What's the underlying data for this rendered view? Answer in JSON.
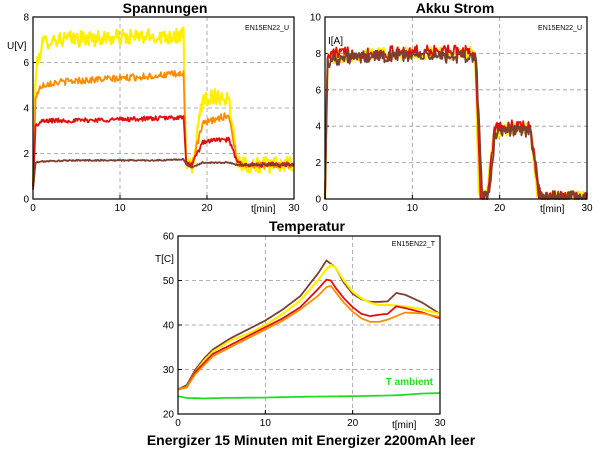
{
  "caption": "Energizer 15 Minuten mit Energizer 2200mAh leer",
  "colors": {
    "yellow": "#ffee00",
    "orange": "#ff8c00",
    "red": "#e01010",
    "brown": "#7a4034",
    "green": "#22dd22",
    "grid": "#999999"
  },
  "chart_data": [
    {
      "type": "line",
      "title": "Spannungen",
      "tag": "EN15EN22_U",
      "ylabel": "U[V]",
      "xlabel": "t[min]",
      "xlim": [
        0,
        30
      ],
      "ylim": [
        0,
        8
      ],
      "xticks": [
        "0",
        "10",
        "20",
        "30"
      ],
      "yticks": [
        "0",
        "2",
        "4",
        "6",
        "8"
      ],
      "grid": true,
      "series": [
        {
          "color": "yellow",
          "noise": 0.35,
          "x": [
            0,
            0.3,
            1,
            2,
            5,
            10,
            15,
            17.3,
            17.6,
            18.3,
            19.5,
            20.5,
            21.5,
            22.5,
            23.5,
            24.5,
            25.5,
            26.5,
            27.5,
            28.5,
            29.5,
            30
          ],
          "y": [
            0.6,
            5.5,
            6.8,
            7.0,
            7.05,
            7.1,
            7.15,
            7.2,
            1.5,
            1.4,
            4.4,
            4.5,
            4.5,
            4.4,
            1.7,
            1.5,
            1.5,
            1.5,
            1.5,
            1.5,
            1.5,
            1.5
          ]
        },
        {
          "color": "orange",
          "noise": 0.15,
          "x": [
            0,
            0.3,
            1,
            2,
            5,
            10,
            15,
            17.3,
            17.6,
            18.3,
            19.5,
            21,
            22.5,
            23.5,
            24.5,
            30
          ],
          "y": [
            0.5,
            4.5,
            5.0,
            5.1,
            5.2,
            5.3,
            5.45,
            5.5,
            1.6,
            1.5,
            3.3,
            3.5,
            3.7,
            1.6,
            1.5,
            1.5
          ]
        },
        {
          "color": "red",
          "noise": 0.1,
          "x": [
            0,
            0.3,
            1,
            2,
            5,
            10,
            15,
            17.3,
            17.6,
            18.3,
            19.5,
            21,
            22.5,
            23.5,
            24.5,
            30
          ],
          "y": [
            0.5,
            3.2,
            3.4,
            3.45,
            3.45,
            3.5,
            3.55,
            3.6,
            1.6,
            1.5,
            2.5,
            2.6,
            2.6,
            1.6,
            1.5,
            1.5
          ]
        },
        {
          "color": "brown",
          "noise": 0.03,
          "x": [
            0,
            0.3,
            1,
            5,
            10,
            15,
            17.3,
            17.6,
            18.3,
            19.5,
            21,
            22.5,
            23.5,
            24.5,
            30
          ],
          "y": [
            0.4,
            1.6,
            1.65,
            1.7,
            1.7,
            1.7,
            1.75,
            1.5,
            1.4,
            1.6,
            1.6,
            1.6,
            1.5,
            1.5,
            1.5
          ]
        }
      ]
    },
    {
      "type": "line",
      "title": "Akku Strom",
      "tag": "EN15EN22_U",
      "ylabel": "I[A]",
      "xlabel": "t[min]",
      "xlim": [
        0,
        30
      ],
      "ylim": [
        0,
        10
      ],
      "xticks": [
        "0",
        "10",
        "20",
        "30"
      ],
      "yticks": [
        "0",
        "2",
        "4",
        "6",
        "8",
        "10"
      ],
      "grid": true,
      "series": [
        {
          "color": "yellow",
          "noise": 0.35,
          "x": [
            0,
            0.3,
            1,
            5,
            10,
            15,
            17.2,
            17.6,
            18.5,
            19.3,
            20.5,
            22,
            23.5,
            24.3,
            25,
            30
          ],
          "y": [
            0,
            7.6,
            7.8,
            8.0,
            8.0,
            8.0,
            8.0,
            0.3,
            0.1,
            3.5,
            3.8,
            3.9,
            3.8,
            0.3,
            0.1,
            0.1
          ]
        },
        {
          "color": "red",
          "noise": 0.35,
          "x": [
            0,
            0.3,
            1,
            5,
            10,
            15,
            17.2,
            17.8,
            18.6,
            19.4,
            20.5,
            22,
            23.5,
            24.5,
            25,
            30
          ],
          "y": [
            0,
            7.8,
            8.0,
            8.0,
            8.1,
            8.1,
            8.1,
            0.3,
            0.1,
            3.8,
            4.0,
            4.0,
            3.9,
            0.3,
            0.1,
            0.1
          ]
        },
        {
          "color": "brown",
          "noise": 0.35,
          "x": [
            0,
            0.3,
            1,
            5,
            10,
            15,
            17.3,
            18,
            18.8,
            19.5,
            20.5,
            22,
            23.5,
            24.6,
            25.2,
            30
          ],
          "y": [
            0,
            7.5,
            7.7,
            7.8,
            7.9,
            7.8,
            7.8,
            0.3,
            0.1,
            3.6,
            3.8,
            3.8,
            3.7,
            0.3,
            0.1,
            0.1
          ]
        }
      ]
    },
    {
      "type": "line",
      "title": "Temperatur",
      "tag": "EN15EN22_T",
      "ylabel": "T[C]",
      "xlabel": "t[min]",
      "annotation": "T ambient",
      "xlim": [
        0,
        30
      ],
      "ylim": [
        20,
        60
      ],
      "xticks": [
        "0",
        "10",
        "20",
        "30"
      ],
      "yticks": [
        "20",
        "30",
        "40",
        "50",
        "60"
      ],
      "grid": true,
      "series": [
        {
          "color": "brown",
          "noise": 0,
          "x": [
            0,
            1,
            2,
            3,
            4,
            6,
            8,
            10,
            12,
            14,
            16,
            17,
            18,
            19,
            20,
            21,
            22,
            23,
            24,
            25,
            26,
            28,
            30
          ],
          "y": [
            25.5,
            26.5,
            30,
            32.5,
            34.5,
            37,
            39,
            41,
            43.5,
            46.5,
            51.5,
            54.5,
            53,
            49.5,
            47,
            45.8,
            45.2,
            45.2,
            45.3,
            47.2,
            46.8,
            45,
            42.5
          ]
        },
        {
          "color": "yellow",
          "noise": 0,
          "x": [
            0,
            1,
            2,
            3,
            4,
            6,
            8,
            10,
            12,
            14,
            16,
            17,
            17.5,
            18,
            19,
            20,
            21,
            22,
            23,
            24,
            26,
            28,
            30
          ],
          "y": [
            25.5,
            26,
            29.5,
            32,
            34,
            36.5,
            38,
            40,
            42.5,
            45.5,
            50,
            52.5,
            53.5,
            53,
            50,
            47.5,
            46,
            45,
            44.5,
            44.5,
            44.2,
            43.5,
            42.5
          ]
        },
        {
          "color": "red",
          "noise": 0,
          "x": [
            0,
            1,
            2,
            3,
            4,
            6,
            8,
            10,
            12,
            14,
            16,
            17,
            17.5,
            18,
            19,
            20,
            21,
            22,
            23,
            24,
            25,
            26,
            28,
            30
          ],
          "y": [
            25.5,
            26,
            29.5,
            31.5,
            33.5,
            35.5,
            37.5,
            39.5,
            41.5,
            44,
            48,
            50.2,
            50,
            48.5,
            46,
            44,
            42.5,
            42,
            42.3,
            42.5,
            44.2,
            43.8,
            42.8,
            41.5
          ]
        },
        {
          "color": "orange",
          "noise": 0,
          "x": [
            0,
            1,
            2,
            3,
            4,
            6,
            8,
            10,
            12,
            14,
            16,
            17,
            17.5,
            18,
            19,
            20,
            21,
            22,
            23,
            24,
            26,
            28,
            30
          ],
          "y": [
            25.5,
            26,
            29,
            31,
            33,
            35,
            37,
            39,
            41,
            43.5,
            46.5,
            48.5,
            48.8,
            47.5,
            45,
            43,
            41.5,
            40.7,
            40.7,
            41.2,
            42.8,
            42.6,
            41.8
          ]
        },
        {
          "color": "green",
          "noise": 0,
          "x": [
            0,
            1,
            3,
            5,
            10,
            15,
            20,
            25,
            28,
            30
          ],
          "y": [
            24,
            23.6,
            23.5,
            23.6,
            23.7,
            23.9,
            24.0,
            24.2,
            24.6,
            24.7
          ]
        }
      ]
    }
  ]
}
